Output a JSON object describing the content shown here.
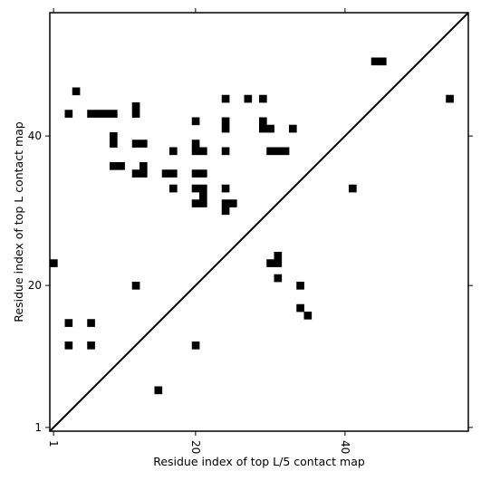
{
  "chart_data": {
    "type": "heatmap",
    "title": "",
    "xlabel": "Residue index of top L/5 contact map",
    "ylabel": "Residue index of top L contact map",
    "xlim": [
      0.5,
      56.5
    ],
    "ylim": [
      0.5,
      56.5
    ],
    "x_ticks": [
      1,
      20,
      40
    ],
    "y_ticks": [
      1,
      20,
      40
    ],
    "x_tick_rotation": -90,
    "grid": false,
    "colors": {
      "contact": "#000000",
      "background": "#ffffff",
      "diagonal": "#000000"
    },
    "diagonal_line": {
      "from": [
        0.5,
        0.5
      ],
      "to": [
        56.5,
        56.5
      ]
    },
    "cells": [
      [
        1,
        23
      ],
      [
        3,
        12
      ],
      [
        3,
        15
      ],
      [
        6,
        12
      ],
      [
        6,
        15
      ],
      [
        12,
        20
      ],
      [
        15,
        6
      ],
      [
        20,
        12
      ],
      [
        35,
        16
      ],
      [
        34,
        17
      ],
      [
        34,
        20
      ],
      [
        31,
        21
      ],
      [
        30,
        23
      ],
      [
        31,
        23
      ],
      [
        31,
        24
      ],
      [
        41,
        33
      ],
      [
        3,
        43
      ],
      [
        4,
        46
      ],
      [
        6,
        43
      ],
      [
        7,
        43
      ],
      [
        8,
        43
      ],
      [
        9,
        43
      ],
      [
        9,
        40
      ],
      [
        9,
        39
      ],
      [
        9,
        36
      ],
      [
        10,
        36
      ],
      [
        12,
        44
      ],
      [
        12,
        43
      ],
      [
        12,
        39
      ],
      [
        13,
        39
      ],
      [
        13,
        36
      ],
      [
        12,
        35
      ],
      [
        13,
        35
      ],
      [
        16,
        35
      ],
      [
        17,
        35
      ],
      [
        17,
        38
      ],
      [
        17,
        33
      ],
      [
        20,
        42
      ],
      [
        20,
        39
      ],
      [
        20,
        38
      ],
      [
        21,
        38
      ],
      [
        20,
        35
      ],
      [
        21,
        35
      ],
      [
        20,
        33
      ],
      [
        21,
        33
      ],
      [
        21,
        32
      ],
      [
        20,
        31
      ],
      [
        21,
        31
      ],
      [
        24,
        45
      ],
      [
        24,
        42
      ],
      [
        24,
        41
      ],
      [
        24,
        38
      ],
      [
        24,
        33
      ],
      [
        24,
        31
      ],
      [
        25,
        31
      ],
      [
        24,
        30
      ],
      [
        27,
        45
      ],
      [
        29,
        45
      ],
      [
        29,
        42
      ],
      [
        29,
        41
      ],
      [
        30,
        41
      ],
      [
        30,
        38
      ],
      [
        31,
        38
      ],
      [
        32,
        38
      ],
      [
        33,
        41
      ],
      [
        44,
        50
      ],
      [
        45,
        50
      ],
      [
        54,
        45
      ]
    ]
  }
}
